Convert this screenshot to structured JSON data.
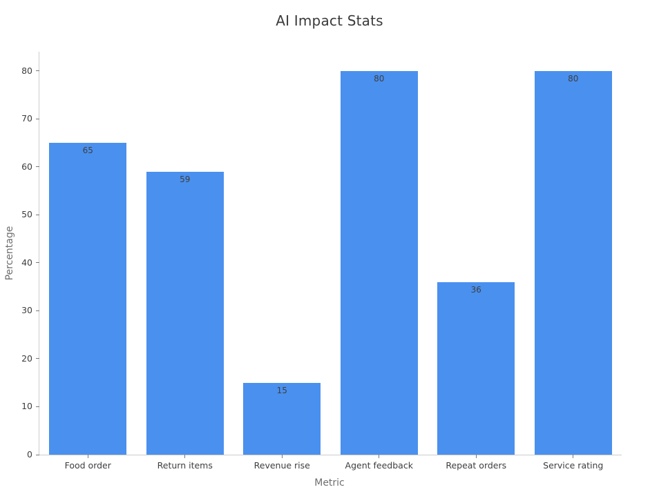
{
  "title": "AI Impact Stats",
  "chart_data": {
    "type": "bar",
    "title": "AI Impact Stats",
    "xlabel": "Metric",
    "ylabel": "Percentage",
    "categories": [
      "Food order",
      "Return items",
      "Revenue rise",
      "Agent feedback",
      "Repeat orders",
      "Service rating"
    ],
    "values": [
      65,
      59,
      15,
      80,
      36,
      80
    ],
    "value_labels": [
      "65",
      "59",
      "15",
      "80",
      "36",
      "80"
    ],
    "yticks": [
      0,
      10,
      20,
      30,
      40,
      50,
      60,
      70,
      80
    ],
    "ylim": [
      0,
      84
    ],
    "grid": false,
    "legend": null,
    "bar_color": "#4a90ee",
    "value_label_color": "#3f3f3f",
    "tick_label_color": "#3d3d3d",
    "axis_label_color": "#6e6e6e",
    "spine_color": "#cccccc",
    "background_color": "#ffffff"
  }
}
